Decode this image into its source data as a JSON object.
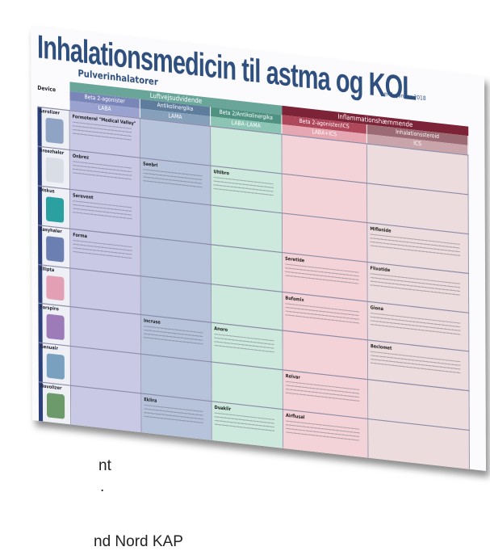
{
  "header": {
    "title": "Inhalationsmedicin til astma og KOL",
    "date": "per 1. januar 2018",
    "subtitle": "Pulverinhalatorer"
  },
  "table": {
    "device_header": "Device",
    "groups": [
      "Luftvejsudvidende",
      "Inflammationshæmmende"
    ],
    "columns": [
      {
        "class": "Beta 2-agonister",
        "abbr": "LABA"
      },
      {
        "class": "Antikolinergika",
        "abbr": "LAMA"
      },
      {
        "class": "Beta 2/Antikolinergika",
        "abbr": "LABA–LAMA"
      },
      {
        "class": "Beta 2-agonister/ICS",
        "abbr": "LABA+ICS"
      },
      {
        "class": "Inhalationssteroid",
        "abbr": "ICS"
      }
    ],
    "rows": [
      {
        "device": "Aerolizer",
        "laba": "Formoterol \"Medical Valley\""
      },
      {
        "device": "Breezhaler",
        "laba": "Onbrez",
        "lama": "Seebri",
        "labalama": "Ultibro"
      },
      {
        "device": "Diskus",
        "laba": "Serevent",
        "ics": "Miflonide"
      },
      {
        "device": "Easyhaler",
        "laba": "Forma",
        "labaics": "Seretide",
        "ics": "Flixotide"
      },
      {
        "device": "Ellipta",
        "labaics": "Bufomix",
        "ics": "Giona"
      },
      {
        "device": "Forspiro",
        "lama": "Incruse",
        "labalama": "Anoro",
        "ics": "Beclomet"
      },
      {
        "device": "Genuair",
        "labaics": "Relvar"
      },
      {
        "device": "Novolizer",
        "lama": "Eklira",
        "labalama": "Duaklir",
        "labaics": "Airflusal"
      }
    ]
  },
  "fragments": [
    "nt",
    ".",
    "nd Nord KAP"
  ]
}
